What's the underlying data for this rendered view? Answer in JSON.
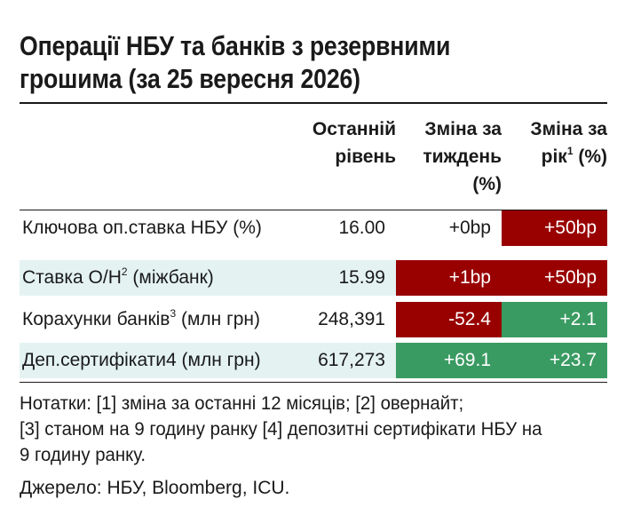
{
  "title": {
    "line1": "Операції НБУ та банків з резервними",
    "line2": "грошима (за 25 вересня 2026)"
  },
  "headers": {
    "level": {
      "line1": "Останній",
      "line2": "рівень"
    },
    "week": {
      "line1": "Зміна за",
      "line2": "тиждень",
      "line3": "(%)"
    },
    "year": {
      "line1": "Зміна за",
      "line2_text": "рік",
      "line2_sup": "1",
      "line2_rest": " (%)"
    }
  },
  "rows": [
    {
      "label": "Ключова оп.ставка НБУ (%)",
      "label_sup": "",
      "label_rest": "",
      "level": "16.00",
      "week": "+0bp",
      "year": "+50bp",
      "week_color": "none",
      "year_color": "red"
    },
    {
      "label": "Ставка O/Н",
      "label_sup": "2",
      "label_rest": " (міжбанк)",
      "level": "15.99",
      "week": "+1bp",
      "year": "+50bp",
      "week_color": "red",
      "year_color": "red"
    },
    {
      "label": "Корахунки банків",
      "label_sup": "3",
      "label_rest": " (млн грн)",
      "level": "248,391",
      "week": "-52.4",
      "year": "+2.1",
      "week_color": "red",
      "year_color": "green"
    },
    {
      "label": "Деп.сертифікати4 (млн грн)",
      "label_sup": "",
      "label_rest": "",
      "level": "617,273",
      "week": "+69.1",
      "year": "+23.7",
      "week_color": "green",
      "year_color": "green"
    }
  ],
  "colors": {
    "red": "#990000",
    "green": "#3a9b62",
    "shade": "#e4f2f2"
  },
  "notes": {
    "line1": "Нотатки: [1] зміна за останні 12 місяців; [2] овернайт;",
    "line2": "[3] станом на 9 годину ранку [4] депозитні сертифікати НБУ на",
    "line3": "9 годину ранку."
  },
  "source": "Джерело: НБУ, Bloomberg, ICU."
}
